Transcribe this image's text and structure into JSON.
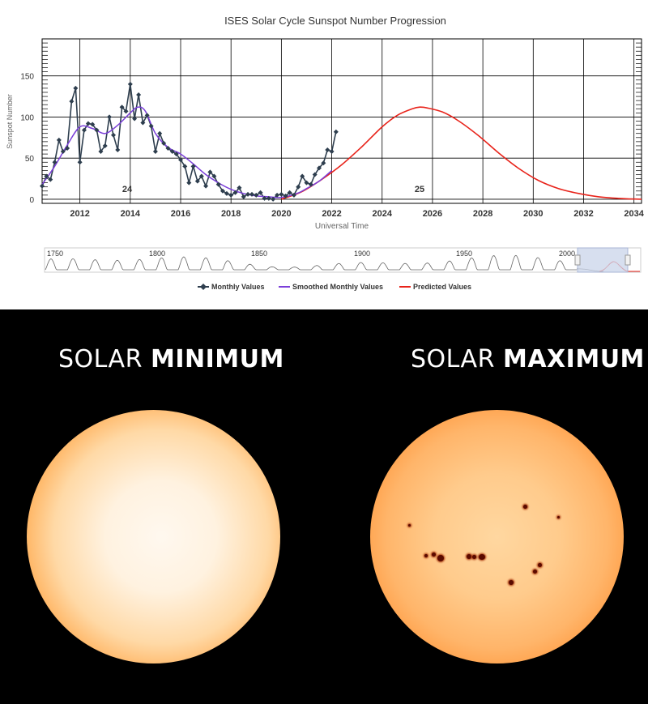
{
  "chart_data": {
    "type": "line",
    "title": "ISES Solar Cycle Sunspot Number Progression",
    "xlabel": "Universal Time",
    "ylabel": "Sunspot Number",
    "xlim": [
      2010.5,
      2034.3
    ],
    "ylim": [
      -5,
      195
    ],
    "x_ticks": [
      "2012",
      "2014",
      "2016",
      "2018",
      "2020",
      "2022",
      "2024",
      "2026",
      "2028",
      "2030",
      "2032",
      "2034"
    ],
    "y_ticks": [
      "0",
      "50",
      "100",
      "150"
    ],
    "grid": true,
    "legend_position": "bottom",
    "cycle_labels": [
      {
        "text": "24",
        "x": 2014.2,
        "y": 10
      },
      {
        "text": "25",
        "x": 2025.8,
        "y": 10
      }
    ],
    "series": [
      {
        "name": "Monthly Values",
        "color": "#2e3e4e",
        "marker": "diamond",
        "x": [
          2010.5,
          2010.67,
          2010.83,
          2011.0,
          2011.17,
          2011.33,
          2011.5,
          2011.67,
          2011.83,
          2012.0,
          2012.17,
          2012.33,
          2012.5,
          2012.67,
          2012.83,
          2013.0,
          2013.17,
          2013.33,
          2013.5,
          2013.67,
          2013.83,
          2014.0,
          2014.17,
          2014.33,
          2014.5,
          2014.67,
          2014.83,
          2015.0,
          2015.17,
          2015.33,
          2015.5,
          2015.67,
          2015.83,
          2016.0,
          2016.17,
          2016.33,
          2016.5,
          2016.67,
          2016.83,
          2017.0,
          2017.17,
          2017.33,
          2017.5,
          2017.67,
          2017.83,
          2018.0,
          2018.17,
          2018.33,
          2018.5,
          2018.67,
          2018.83,
          2019.0,
          2019.17,
          2019.33,
          2019.5,
          2019.67,
          2019.83,
          2020.0,
          2020.17,
          2020.33,
          2020.5,
          2020.67,
          2020.83,
          2021.0,
          2021.17,
          2021.33,
          2021.5,
          2021.67,
          2021.83,
          2022.0,
          2022.17
        ],
        "y": [
          16,
          28,
          24,
          45,
          72,
          58,
          62,
          119,
          135,
          45,
          84,
          92,
          91,
          84,
          58,
          65,
          100,
          78,
          60,
          112,
          107,
          140,
          98,
          127,
          93,
          102,
          89,
          58,
          80,
          68,
          62,
          58,
          55,
          48,
          40,
          20,
          40,
          22,
          28,
          16,
          33,
          28,
          18,
          10,
          7,
          5,
          8,
          14,
          3,
          6,
          6,
          5,
          8,
          1,
          1,
          0,
          5,
          6,
          4,
          8,
          5,
          15,
          28,
          20,
          18,
          30,
          38,
          44,
          60,
          58,
          82
        ]
      },
      {
        "name": "Smoothed Monthly Values",
        "color": "#7b3fd9",
        "x": [
          2010.5,
          2011.0,
          2011.5,
          2012.0,
          2012.5,
          2013.0,
          2013.5,
          2014.0,
          2014.3,
          2014.6,
          2015.0,
          2015.5,
          2016.0,
          2016.5,
          2017.0,
          2017.5,
          2018.0,
          2018.5,
          2019.0,
          2019.5,
          2019.9,
          2020.3,
          2020.7,
          2021.0,
          2021.5,
          2022.0
        ],
        "y": [
          18,
          40,
          66,
          88,
          86,
          80,
          90,
          105,
          112,
          107,
          80,
          63,
          55,
          43,
          30,
          20,
          12,
          7,
          4,
          3,
          2,
          4,
          8,
          13,
          22,
          35
        ]
      },
      {
        "name": "Predicted Values",
        "color": "#e8231a",
        "x": [
          2020.0,
          2020.8,
          2021.6,
          2022.4,
          2023.2,
          2024.0,
          2024.6,
          2025.2,
          2025.5,
          2025.8,
          2026.4,
          2027.0,
          2027.8,
          2028.6,
          2029.4,
          2030.2,
          2031.0,
          2031.8,
          2032.6,
          2033.4,
          2034.3
        ],
        "y": [
          0,
          9,
          24,
          42,
          64,
          88,
          102,
          110,
          112,
          111,
          106,
          96,
          78,
          57,
          38,
          23,
          13,
          7,
          3,
          1,
          0
        ]
      }
    ]
  },
  "navigator": {
    "labels": [
      "1750",
      "1800",
      "1850",
      "1900",
      "1950",
      "2000"
    ]
  },
  "legend": {
    "monthly": "Monthly Values",
    "smoothed": "Smoothed Monthly Values",
    "predicted": "Predicted Values"
  },
  "solar_min": {
    "word1": "SOLAR",
    "word2": "MINIMUM"
  },
  "solar_max": {
    "word1": "SOLAR",
    "word2": "MAXIMUM"
  }
}
